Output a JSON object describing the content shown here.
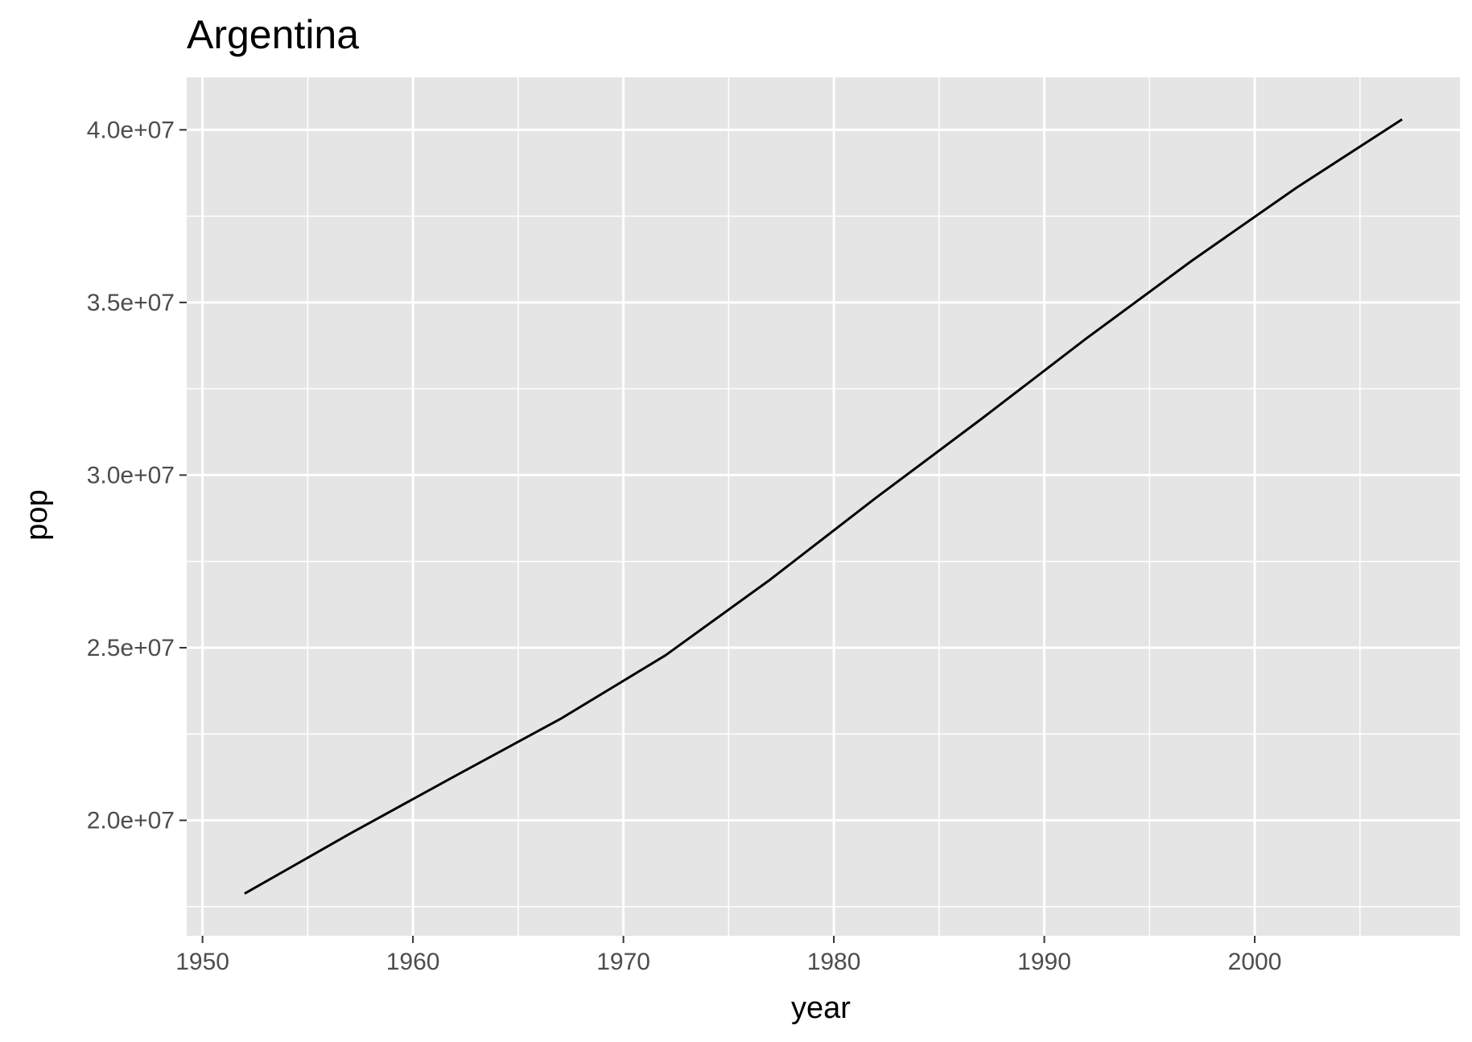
{
  "chart_data": {
    "type": "line",
    "title": "Argentina",
    "xlabel": "year",
    "ylabel": "pop",
    "x": [
      1952,
      1957,
      1962,
      1967,
      1972,
      1977,
      1982,
      1987,
      1992,
      1997,
      2002,
      2007
    ],
    "series": [
      {
        "values": [
          17876956,
          19610538,
          21283783,
          22934225,
          24779799,
          26983828,
          29341374,
          31620918,
          33958947,
          36203463,
          38331121,
          40301927
        ],
        "color": "#000000"
      }
    ],
    "xlim": [
      1949.25,
      2009.75
    ],
    "ylim": [
      16655708,
      41523175
    ],
    "x_ticks": [
      1950,
      1960,
      1970,
      1980,
      1990,
      2000
    ],
    "x_tick_labels": [
      "1950",
      "1960",
      "1970",
      "1980",
      "1990",
      "2000"
    ],
    "y_ticks": [
      20000000,
      25000000,
      30000000,
      35000000,
      40000000
    ],
    "y_tick_labels": [
      "2.0e+07",
      "2.5e+07",
      "3.0e+07",
      "3.5e+07",
      "4.0e+07"
    ],
    "grid": true,
    "colors": {
      "panel_background": "#e5e5e5",
      "grid_line": "#ffffff",
      "tick_mark": "#333333",
      "tick_label": "#4d4d4d",
      "text": "#000000"
    }
  }
}
